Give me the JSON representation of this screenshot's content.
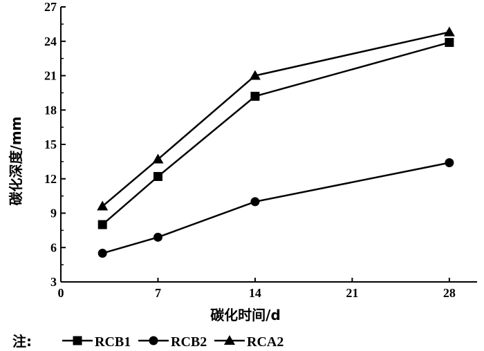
{
  "chart_data": {
    "type": "line",
    "xlabel": "碳化时间/d",
    "ylabel": "碳化深度/mm",
    "x_ticks": [
      0,
      7,
      14,
      21,
      28
    ],
    "y_ticks": [
      3,
      6,
      9,
      12,
      15,
      18,
      21,
      24,
      27
    ],
    "xlim": [
      0,
      30
    ],
    "ylim": [
      3,
      27
    ],
    "legend_prefix": "注:",
    "legend_position": "bottom-left",
    "series": [
      {
        "name": "RCB1",
        "marker": "square",
        "x": [
          3,
          7,
          14,
          28
        ],
        "values": [
          8.0,
          12.2,
          19.2,
          23.9
        ]
      },
      {
        "name": "RCB2",
        "marker": "circle",
        "x": [
          3,
          7,
          14,
          28
        ],
        "values": [
          5.5,
          6.9,
          10.0,
          13.4
        ]
      },
      {
        "name": "RCA2",
        "marker": "triangle",
        "x": [
          3,
          7,
          14,
          28
        ],
        "values": [
          9.6,
          13.7,
          21.0,
          24.8
        ]
      }
    ]
  }
}
